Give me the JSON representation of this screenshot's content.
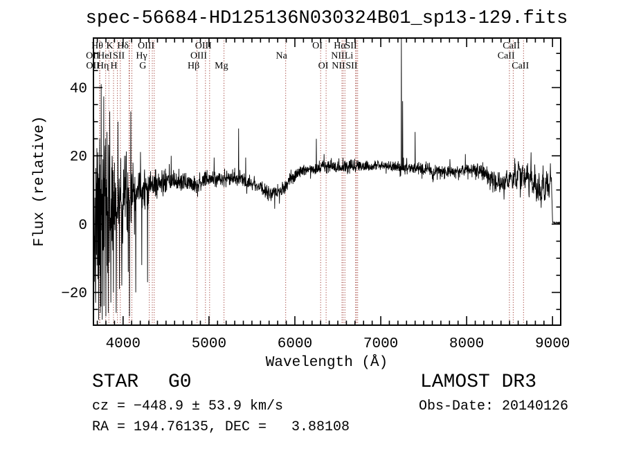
{
  "footer": {
    "class": "STAR",
    "subclass": "G0",
    "cz": "cz = −448.9 ± 53.9 km/s",
    "radec": "RA = 194.76135, DEC =   3.88108",
    "survey": "LAMOST DR3",
    "obs_date": "Obs-Date: 20140126"
  },
  "colors": {
    "spectrum": "#000000",
    "line_marker": "#9e3a32",
    "axis": "#000000",
    "background": "#ffffff"
  },
  "chart_data": {
    "type": "line",
    "title": "spec-56684-HD125136N030324B01_sp13-129.fits",
    "xlabel": "Wavelength (Å)",
    "ylabel": "Flux (relative)",
    "xlim": [
      3655,
      9095
    ],
    "ylim": [
      -29.6,
      54.5
    ],
    "x_major_ticks": [
      4000,
      5000,
      6000,
      7000,
      8000,
      9000
    ],
    "x_minor_step": 100,
    "y_major_ticks": [
      -20,
      0,
      20,
      40
    ],
    "y_minor_step": 5,
    "grid": false,
    "legend": "none",
    "series_name": "flux",
    "sample_step_A": 2.5,
    "noise_seed": 7,
    "clip_flux": [
      -28.2,
      54.5
    ],
    "continuum_anchors": [
      [
        3660,
        -5
      ],
      [
        3700,
        -2
      ],
      [
        3740,
        0.5
      ],
      [
        3780,
        2.5
      ],
      [
        3830,
        4
      ],
      [
        3880,
        5.2
      ],
      [
        3940,
        6.3
      ],
      [
        4000,
        7.5
      ],
      [
        4060,
        8.5
      ],
      [
        4120,
        9.5
      ],
      [
        4200,
        10.4
      ],
      [
        4300,
        11
      ],
      [
        4400,
        11.8
      ],
      [
        4500,
        12.2
      ],
      [
        4600,
        12.5
      ],
      [
        4700,
        12.3
      ],
      [
        4800,
        12.2
      ],
      [
        4861,
        11.7
      ],
      [
        4950,
        12.8
      ],
      [
        5050,
        13.3
      ],
      [
        5175,
        13.2
      ],
      [
        5250,
        13.5
      ],
      [
        5350,
        13.2
      ],
      [
        5450,
        12.6
      ],
      [
        5550,
        11.5
      ],
      [
        5650,
        9.8
      ],
      [
        5740,
        8.8
      ],
      [
        5820,
        9.3
      ],
      [
        5890,
        10.8
      ],
      [
        5950,
        13
      ],
      [
        6020,
        14.8
      ],
      [
        6100,
        15.8
      ],
      [
        6200,
        16.3
      ],
      [
        6300,
        16.6
      ],
      [
        6450,
        16.8
      ],
      [
        6560,
        16.7
      ],
      [
        6650,
        17
      ],
      [
        6750,
        17.2
      ],
      [
        6865,
        17
      ],
      [
        6885,
        16.3
      ],
      [
        6920,
        17.2
      ],
      [
        7000,
        17.3
      ],
      [
        7100,
        17.1
      ],
      [
        7200,
        16.8
      ],
      [
        7300,
        16.4
      ],
      [
        7400,
        16.1
      ],
      [
        7500,
        16.1
      ],
      [
        7580,
        16
      ],
      [
        7605,
        13.9
      ],
      [
        7635,
        15.8
      ],
      [
        7700,
        15.7
      ],
      [
        7800,
        15.3
      ],
      [
        7900,
        15.4
      ],
      [
        8000,
        16.2
      ],
      [
        8100,
        16
      ],
      [
        8200,
        15.2
      ],
      [
        8300,
        13.6
      ],
      [
        8370,
        11.8
      ],
      [
        8430,
        11.4
      ],
      [
        8470,
        13.4
      ],
      [
        8530,
        13.9
      ],
      [
        8590,
        13.5
      ],
      [
        8650,
        14.3
      ],
      [
        8700,
        14
      ],
      [
        8760,
        12.5
      ],
      [
        8800,
        11
      ],
      [
        8850,
        9.6
      ],
      [
        8880,
        12
      ],
      [
        8910,
        9.2
      ],
      [
        8950,
        12
      ],
      [
        8975,
        13.8
      ],
      [
        8990,
        10
      ],
      [
        8998,
        2
      ],
      [
        9002,
        0.4
      ],
      [
        9092,
        0.4
      ]
    ],
    "noise_sigma_anchors": [
      [
        3660,
        13
      ],
      [
        3760,
        12
      ],
      [
        3820,
        10.5
      ],
      [
        3900,
        8.5
      ],
      [
        3980,
        6.5
      ],
      [
        4060,
        5
      ],
      [
        4150,
        3.8
      ],
      [
        4250,
        2.8
      ],
      [
        4350,
        2.2
      ],
      [
        4500,
        1.7
      ],
      [
        4700,
        1.4
      ],
      [
        5000,
        1.15
      ],
      [
        5400,
        1.05
      ],
      [
        5900,
        0.95
      ],
      [
        6400,
        0.9
      ],
      [
        7000,
        0.85
      ],
      [
        7600,
        0.9
      ],
      [
        8100,
        1.05
      ],
      [
        8400,
        1.5
      ],
      [
        8700,
        2
      ],
      [
        8930,
        2
      ],
      [
        8990,
        1.2
      ],
      [
        9000,
        0.15
      ],
      [
        9092,
        0.12
      ]
    ],
    "emission_spikes": [
      [
        3705,
        21
      ],
      [
        3715,
        -28
      ],
      [
        3728,
        25
      ],
      [
        3736,
        -26
      ],
      [
        3744,
        41
      ],
      [
        3757,
        -28
      ],
      [
        3766,
        19
      ],
      [
        3778,
        -24
      ],
      [
        3790,
        23
      ],
      [
        3800,
        -27
      ],
      [
        3812,
        27
      ],
      [
        3828,
        -26
      ],
      [
        3845,
        33
      ],
      [
        3858,
        -23
      ],
      [
        3872,
        20
      ],
      [
        3888,
        -20
      ],
      [
        3900,
        18
      ],
      [
        3920,
        -26
      ],
      [
        3940,
        30
      ],
      [
        3958,
        -19
      ],
      [
        3985,
        -18
      ],
      [
        4005,
        16
      ],
      [
        4032,
        20
      ],
      [
        4060,
        -14
      ],
      [
        4075,
        -27
      ],
      [
        4090,
        33
      ],
      [
        4115,
        18
      ],
      [
        4147,
        -20
      ],
      [
        4180,
        15
      ],
      [
        4218,
        -12
      ],
      [
        4250,
        16
      ],
      [
        4284,
        -17
      ],
      [
        4320,
        15.5
      ],
      [
        4380,
        16
      ],
      [
        4560,
        20
      ],
      [
        4868,
        8
      ],
      [
        5060,
        19.5
      ],
      [
        5345,
        28
      ],
      [
        5428,
        19.5
      ],
      [
        5765,
        4.5
      ],
      [
        5820,
        6
      ],
      [
        6250,
        25
      ],
      [
        6340,
        20.5
      ],
      [
        7240,
        60
      ],
      [
        7256,
        36
      ],
      [
        7400,
        27
      ],
      [
        7805,
        19
      ],
      [
        7985,
        20.5
      ],
      [
        8434,
        7.2
      ],
      [
        8750,
        21
      ]
    ],
    "fringe": {
      "start_A": 8310,
      "end_A": 8995,
      "period_div": 7.5,
      "amp0": 0.9,
      "amp1": 2.5
    },
    "line_markers": [
      {
        "label": "Hθ",
        "row": 1,
        "label_at": 3700,
        "lines": [
          3798
        ]
      },
      {
        "label": "K",
        "row": 1,
        "label_at": 3845,
        "lines": [
          3934
        ]
      },
      {
        "label": "Hδ",
        "row": 1,
        "label_at": 3998,
        "lines": [
          4102
        ]
      },
      {
        "label": "OIII",
        "row": 1,
        "label_at": 4268,
        "lines": [
          4363
        ]
      },
      {
        "label": "OIII",
        "row": 1,
        "label_at": 4935,
        "lines": [
          5007
        ]
      },
      {
        "label": "OI",
        "row": 1,
        "label_at": 6262,
        "lines": [
          6300
        ]
      },
      {
        "label": "Hα",
        "row": 1,
        "label_at": 6524,
        "lines": [
          6563
        ]
      },
      {
        "label": "SII",
        "row": 1,
        "label_at": 6653,
        "lines": [
          6716
        ]
      },
      {
        "label": "CaII",
        "row": 1,
        "label_at": 8520,
        "lines": [
          8498
        ]
      },
      {
        "label": "OII",
        "row": 2,
        "label_at": 3645,
        "lines": [
          3727
        ]
      },
      {
        "label": "HeI",
        "row": 2,
        "label_at": 3789,
        "lines": [
          3889
        ]
      },
      {
        "label": "SII",
        "row": 2,
        "label_at": 3950,
        "lines": [
          4069,
          4076
        ]
      },
      {
        "label": "Hγ",
        "row": 2,
        "label_at": 4215,
        "lines": [
          4340
        ]
      },
      {
        "label": "OIII",
        "row": 2,
        "label_at": 4880,
        "lines": [
          4959
        ]
      },
      {
        "label": "Na",
        "row": 2,
        "label_at": 5845,
        "lines": [
          5893
        ]
      },
      {
        "label": "NII",
        "row": 2,
        "label_at": 6500,
        "lines": [
          6548
        ]
      },
      {
        "label": "Li",
        "row": 2,
        "label_at": 6630,
        "lines": [
          6708
        ]
      },
      {
        "label": "CaII",
        "row": 2,
        "label_at": 8460,
        "lines": [
          8542
        ]
      },
      {
        "label": "OII",
        "row": 3,
        "label_at": 3648,
        "lines": [
          3730
        ]
      },
      {
        "label": "Hη",
        "row": 3,
        "label_at": 3765,
        "lines": [
          3835
        ]
      },
      {
        "label": "H",
        "row": 3,
        "label_at": 3893,
        "lines": [
          3968
        ]
      },
      {
        "label": "G",
        "row": 3,
        "label_at": 4230,
        "lines": [
          4305
        ]
      },
      {
        "label": "Hβ",
        "row": 3,
        "label_at": 4820,
        "lines": [
          4861
        ]
      },
      {
        "label": "Mg",
        "row": 3,
        "label_at": 5145,
        "lines": [
          5175
        ]
      },
      {
        "label": "OI",
        "row": 3,
        "label_at": 6331,
        "lines": [
          6364
        ]
      },
      {
        "label": "NII",
        "row": 3,
        "label_at": 6508,
        "lines": [
          6583
        ]
      },
      {
        "label": "SII",
        "row": 3,
        "label_at": 6660,
        "lines": [
          6731
        ]
      },
      {
        "label": "CaII",
        "row": 3,
        "label_at": 8625,
        "lines": [
          8662
        ]
      }
    ]
  }
}
